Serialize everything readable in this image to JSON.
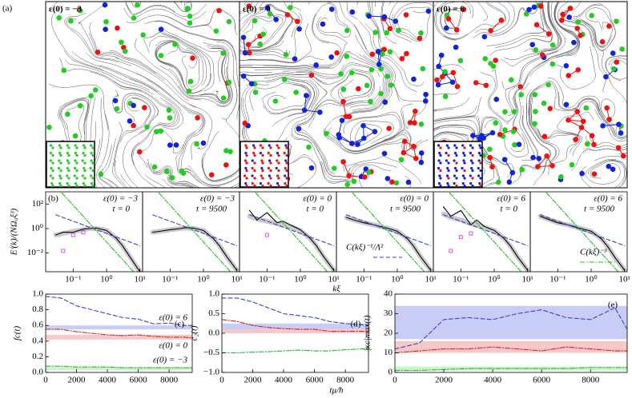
{
  "chart_data": [
    {
      "type": "image",
      "label": "(a)",
      "panels": [
        "ε(0) = −3",
        "ε(0) = 0",
        "ε(0) = 6"
      ],
      "dot_colors": [
        "#ee1111",
        "#22cc22",
        "#1122dd"
      ]
    },
    {
      "type": "line",
      "label": "(b)",
      "log_x": true,
      "log_y": true,
      "title": "ε(0) = −3",
      "subtitle": "t = 0",
      "ylabel": "Eⁱ(k)/(NΩ₀ξ³)",
      "x": [
        0.03,
        0.05,
        0.1,
        0.2,
        0.3,
        0.5,
        1,
        2,
        3,
        5,
        10
      ],
      "xlim": [
        0.015,
        12
      ],
      "ylim": [
        0.0003,
        1000
      ],
      "xticks": [
        {
          "value": 0.1,
          "label": "10⁻¹"
        },
        {
          "value": 1,
          "label": "10⁰"
        },
        {
          "value": 10,
          "label": "10¹"
        }
      ],
      "yticks": [
        {
          "value": 100,
          "label": "10²"
        },
        {
          "value": 1,
          "label": "10⁰"
        },
        {
          "value": 0.01,
          "label": "10⁻²"
        }
      ],
      "series": [
        {
          "color": "#bbbbbb",
          "style": "band",
          "values": [
            0.3,
            0.4,
            0.6,
            0.8,
            1,
            1,
            0.7,
            0.15,
            0.04,
            0.005,
            0.0003
          ]
        },
        {
          "color": "#000000",
          "style": "solid",
          "values": [
            0.3,
            0.5,
            0.5,
            0.9,
            1,
            1.1,
            0.7,
            0.15,
            0.04,
            0.005,
            0.0003
          ]
        },
        {
          "color": "#3344cc",
          "style": "dashed",
          "values": [
            13.3,
            8,
            4,
            2,
            1.33,
            0.8,
            0.4,
            0.2,
            0.133,
            0.08,
            0.04
          ]
        },
        {
          "color": "#22bb22",
          "style": "dashdot",
          "values": [
            2963,
            640,
            80,
            10,
            2.96,
            0.64,
            0.08,
            0.01,
            0.003,
            0.00064,
            8e-05
          ]
        },
        {
          "color": "#dd44dd",
          "style": "markers",
          "values": [
            null,
            0.015,
            0.3,
            0.5,
            null,
            null,
            null,
            null,
            null,
            null,
            null
          ]
        }
      ]
    },
    {
      "type": "line",
      "log_x": true,
      "log_y": true,
      "title": "ε(0) = −3",
      "subtitle": "t = 9500",
      "x": [
        0.03,
        0.05,
        0.1,
        0.2,
        0.3,
        0.5,
        1,
        2,
        3,
        5,
        10
      ],
      "xlim": [
        0.015,
        12
      ],
      "ylim": [
        0.0003,
        1000
      ],
      "xticks": [
        {
          "value": 0.1,
          "label": "10⁻¹"
        },
        {
          "value": 1,
          "label": "10⁰"
        },
        {
          "value": 10,
          "label": "10¹"
        }
      ],
      "series": [
        {
          "color": "#bbbbbb",
          "style": "band",
          "values": [
            0.5,
            0.6,
            0.8,
            1,
            1.1,
            1,
            0.7,
            0.15,
            0.04,
            0.005,
            0.0004
          ]
        },
        {
          "color": "#000000",
          "style": "solid",
          "values": [
            0.5,
            0.6,
            0.8,
            1,
            1.2,
            1.1,
            0.7,
            0.15,
            0.04,
            0.005,
            0.0004
          ]
        },
        {
          "color": "#3344cc",
          "style": "dashed",
          "values": [
            13.3,
            8,
            4,
            2,
            1.33,
            0.8,
            0.4,
            0.2,
            0.133,
            0.08,
            0.04
          ]
        },
        {
          "color": "#22bb22",
          "style": "dashdot",
          "values": [
            2963,
            640,
            80,
            10,
            2.96,
            0.64,
            0.08,
            0.01,
            0.003,
            0.00064,
            8e-05
          ]
        }
      ]
    },
    {
      "type": "line",
      "log_x": true,
      "log_y": true,
      "title": "ε(0) = 0",
      "subtitle": "t = 0",
      "xlabel": "kξ",
      "x": [
        0.03,
        0.05,
        0.1,
        0.2,
        0.3,
        0.5,
        1,
        2,
        3,
        5,
        10
      ],
      "xlim": [
        0.015,
        12
      ],
      "ylim": [
        0.0003,
        1000
      ],
      "xticks": [
        {
          "value": 0.1,
          "label": "10⁻¹"
        },
        {
          "value": 1,
          "label": "10⁰"
        },
        {
          "value": 10,
          "label": "10¹"
        }
      ],
      "series": [
        {
          "color": "#bbbbbb",
          "style": "band",
          "values": [
            10,
            6,
            4,
            2.5,
            2,
            1.4,
            0.7,
            0.15,
            0.04,
            0.005,
            0.0004
          ]
        },
        {
          "color": "#000000",
          "style": "solid",
          "values": [
            30,
            5,
            20,
            3,
            4,
            2,
            0.8,
            0.15,
            0.04,
            0.005,
            0.0004
          ]
        },
        {
          "color": "#3344cc",
          "style": "dashed",
          "values": [
            13.3,
            8,
            4,
            2,
            1.33,
            0.8,
            0.4,
            0.2,
            0.133,
            0.08,
            0.04
          ]
        },
        {
          "color": "#22bb22",
          "style": "dashdot",
          "values": [
            2963,
            640,
            80,
            10,
            2.96,
            0.64,
            0.08,
            0.01,
            0.003,
            0.00064,
            8e-05
          ]
        },
        {
          "color": "#dd44dd",
          "style": "markers",
          "values": [
            null,
            null,
            0.3,
            null,
            null,
            null,
            null,
            null,
            null,
            null,
            null
          ]
        }
      ]
    },
    {
      "type": "line",
      "log_x": true,
      "log_y": true,
      "title": "ε(0) = 0",
      "subtitle": "t = 9500",
      "x": [
        0.03,
        0.05,
        0.1,
        0.2,
        0.3,
        0.5,
        1,
        2,
        3,
        5,
        10
      ],
      "xlim": [
        0.015,
        12
      ],
      "ylim": [
        0.0003,
        1000
      ],
      "xticks": [
        {
          "value": 0.1,
          "label": "10⁻¹"
        },
        {
          "value": 1,
          "label": "10⁰"
        },
        {
          "value": 10,
          "label": "10¹"
        }
      ],
      "series": [
        {
          "color": "#bbbbbb",
          "style": "band",
          "values": [
            8,
            5,
            3,
            2,
            1.5,
            1.1,
            0.6,
            0.15,
            0.04,
            0.005,
            0.0004
          ]
        },
        {
          "color": "#000000",
          "style": "solid",
          "values": [
            8,
            5,
            3,
            2,
            1.5,
            1.1,
            0.6,
            0.15,
            0.04,
            0.005,
            0.0004
          ]
        },
        {
          "color": "#3344cc",
          "style": "dashed",
          "name": "C(kξ)⁻¹/Λ²",
          "values": [
            13.3,
            8,
            4,
            2,
            1.33,
            0.8,
            0.4,
            0.2,
            0.133,
            0.08,
            0.04
          ]
        },
        {
          "color": "#22bb22",
          "style": "dashdot",
          "values": [
            2963,
            640,
            80,
            10,
            2.96,
            0.64,
            0.08,
            0.01,
            0.003,
            0.00064,
            8e-05
          ]
        }
      ]
    },
    {
      "type": "line",
      "log_x": true,
      "log_y": true,
      "title": "ε(0) = 6",
      "subtitle": "t = 0",
      "x": [
        0.03,
        0.05,
        0.1,
        0.2,
        0.3,
        0.5,
        1,
        2,
        3,
        5,
        10
      ],
      "xlim": [
        0.015,
        12
      ],
      "ylim": [
        0.0003,
        1000
      ],
      "xticks": [
        {
          "value": 0.1,
          "label": "10⁻¹"
        },
        {
          "value": 1,
          "label": "10⁰"
        },
        {
          "value": 10,
          "label": "10¹"
        }
      ],
      "series": [
        {
          "color": "#bbbbbb",
          "style": "band",
          "values": [
            15,
            8,
            5,
            2.5,
            2,
            1.3,
            0.7,
            0.15,
            0.04,
            0.005,
            0.0004
          ]
        },
        {
          "color": "#000000",
          "style": "solid",
          "values": [
            60,
            10,
            30,
            2,
            5,
            1.5,
            0.7,
            0.15,
            0.04,
            0.005,
            0.0004
          ]
        },
        {
          "color": "#3344cc",
          "style": "dashed",
          "values": [
            13.3,
            8,
            4,
            2,
            1.33,
            0.8,
            0.4,
            0.2,
            0.133,
            0.08,
            0.04
          ]
        },
        {
          "color": "#22bb22",
          "style": "dashdot",
          "values": [
            2963,
            640,
            80,
            10,
            2.96,
            0.64,
            0.08,
            0.01,
            0.003,
            0.00064,
            8e-05
          ]
        },
        {
          "color": "#dd44dd",
          "style": "markers",
          "values": [
            null,
            0.015,
            0.2,
            0.4,
            null,
            null,
            null,
            null,
            null,
            null,
            null
          ]
        }
      ]
    },
    {
      "type": "line",
      "log_x": true,
      "log_y": true,
      "title": "ε(0) = 6",
      "subtitle": "t = 9500",
      "x": [
        0.03,
        0.05,
        0.1,
        0.2,
        0.3,
        0.5,
        1,
        2,
        3,
        5,
        10
      ],
      "xlim": [
        0.015,
        12
      ],
      "ylim": [
        0.0003,
        1000
      ],
      "xticks": [
        {
          "value": 0.1,
          "label": "10⁻¹"
        },
        {
          "value": 1,
          "label": "10⁰"
        },
        {
          "value": 10,
          "label": "10¹"
        }
      ],
      "series": [
        {
          "color": "#bbbbbb",
          "style": "band",
          "values": [
            10,
            6,
            3,
            2,
            1.5,
            1,
            0.6,
            0.15,
            0.04,
            0.005,
            0.0004
          ]
        },
        {
          "color": "#000000",
          "style": "solid",
          "values": [
            10,
            6,
            3,
            2,
            1.5,
            1,
            0.6,
            0.15,
            0.04,
            0.005,
            0.0004
          ]
        },
        {
          "color": "#3344cc",
          "style": "dashed",
          "values": [
            13.3,
            8,
            4,
            2,
            1.33,
            0.8,
            0.4,
            0.2,
            0.133,
            0.08,
            0.04
          ]
        },
        {
          "color": "#22bb22",
          "style": "dashdot",
          "name": "C(kξ)⁻³",
          "values": [
            2963,
            640,
            80,
            10,
            2.96,
            0.64,
            0.08,
            0.01,
            0.003,
            0.00064,
            8e-05
          ]
        }
      ]
    },
    {
      "type": "line",
      "label": "(c)",
      "ylabel": "fc(t)",
      "x": [
        0,
        1000,
        2000,
        3000,
        4000,
        5000,
        6000,
        7000,
        8000,
        9000,
        9500
      ],
      "xlim": [
        0,
        9500
      ],
      "ylim": [
        0,
        1
      ],
      "xticks": [
        0,
        2000,
        4000,
        6000,
        8000
      ],
      "yticks": [
        {
          "value": 0,
          "label": "0.0"
        },
        {
          "value": 0.2,
          "label": "0.2"
        },
        {
          "value": 0.4,
          "label": "0.4"
        },
        {
          "value": 0.6,
          "label": "0.6"
        },
        {
          "value": 0.8,
          "label": "0.8"
        },
        {
          "value": 1,
          "label": "1.0"
        }
      ],
      "bands": [
        {
          "color": "#c9cdf6",
          "range": [
            0.55,
            0.6
          ]
        },
        {
          "color": "#f6c9c9",
          "range": [
            0.42,
            0.48
          ]
        },
        {
          "color": "#cdf0cd",
          "range": [
            0.03,
            0.07
          ]
        }
      ],
      "series": [
        {
          "name": "ε(0) = 6",
          "color": "#3344cc",
          "style": "dashed",
          "values": [
            0.97,
            0.95,
            0.85,
            0.8,
            0.75,
            0.7,
            0.68,
            0.62,
            0.63,
            0.6,
            0.6
          ]
        },
        {
          "name": "ε(0) = 0",
          "color": "#dd2222",
          "style": "dashdot",
          "values": [
            0.55,
            0.55,
            0.52,
            0.5,
            0.48,
            0.47,
            0.48,
            0.46,
            0.45,
            0.45,
            0.44
          ]
        },
        {
          "name": "ε(0) = −3",
          "color": "#22bb22",
          "style": "dashdot",
          "values": [
            0.08,
            0.08,
            0.07,
            0.07,
            0.07,
            0.06,
            0.06,
            0.06,
            0.06,
            0.06,
            0.06
          ]
        }
      ]
    },
    {
      "type": "line",
      "label": "(d)",
      "ylabel": "c₂(t)",
      "x": [
        0,
        1000,
        2000,
        3000,
        4000,
        5000,
        6000,
        7000,
        8000,
        9000,
        9500
      ],
      "xlim": [
        0,
        9500
      ],
      "ylim": [
        -1,
        1
      ],
      "xticks": [
        0,
        2000,
        4000,
        6000,
        8000
      ],
      "yticks": [
        {
          "value": -1,
          "label": "−1.0"
        },
        {
          "value": -0.5,
          "label": "−0.5"
        },
        {
          "value": 0,
          "label": "0.0"
        },
        {
          "value": 0.5,
          "label": "0.5"
        },
        {
          "value": 1,
          "label": "1.0"
        }
      ],
      "bands": [
        {
          "color": "#c9cdf6",
          "range": [
            0.1,
            0.25
          ]
        },
        {
          "color": "#f6c9c9",
          "range": [
            0,
            0.1
          ]
        }
      ],
      "series": [
        {
          "color": "#3344cc",
          "style": "dashed",
          "values": [
            0.9,
            0.9,
            0.8,
            0.65,
            0.5,
            0.45,
            0.4,
            0.3,
            0.25,
            0.22,
            0.2
          ]
        },
        {
          "color": "#dd2222",
          "style": "dashdot",
          "values": [
            0.35,
            0.3,
            0.2,
            0.15,
            0.12,
            0.1,
            0.1,
            0.05,
            0.05,
            0.05,
            0.05
          ]
        },
        {
          "color": "#22bb22",
          "style": "dashdot",
          "values": [
            -0.5,
            -0.5,
            -0.48,
            -0.47,
            -0.45,
            -0.43,
            -0.45,
            -0.45,
            -0.42,
            -0.4,
            -0.4
          ]
        }
      ]
    },
    {
      "type": "line",
      "label": "(e)",
      "ylabel": "|κc|max(t)",
      "xlabel": "tμ/ħ",
      "x": [
        0,
        1000,
        2000,
        3000,
        4000,
        5000,
        6000,
        7000,
        8000,
        9000,
        9500
      ],
      "xlim": [
        0,
        9500
      ],
      "ylim": [
        0,
        40
      ],
      "xticks": [
        0,
        2000,
        4000,
        6000,
        8000
      ],
      "yticks": [
        0,
        10,
        20,
        30,
        40
      ],
      "bands": [
        {
          "color": "#c9cdf6",
          "range": [
            17,
            34
          ]
        },
        {
          "color": "#f6c9c9",
          "range": [
            10,
            16
          ]
        },
        {
          "color": "#cdf0cd",
          "range": [
            1,
            3
          ]
        }
      ],
      "series": [
        {
          "color": "#3344cc",
          "style": "dashed",
          "values": [
            12,
            15,
            27,
            28,
            27,
            30,
            32,
            28,
            27,
            33,
            22
          ]
        },
        {
          "color": "#dd2222",
          "style": "dashdot",
          "values": [
            10,
            11,
            12,
            12,
            13,
            12,
            11,
            13,
            12,
            11,
            11
          ]
        },
        {
          "color": "#22bb22",
          "style": "dashdot",
          "values": [
            1,
            1,
            1.5,
            2,
            2,
            2,
            2,
            2,
            2.5,
            2.5,
            2.5
          ]
        }
      ]
    }
  ]
}
